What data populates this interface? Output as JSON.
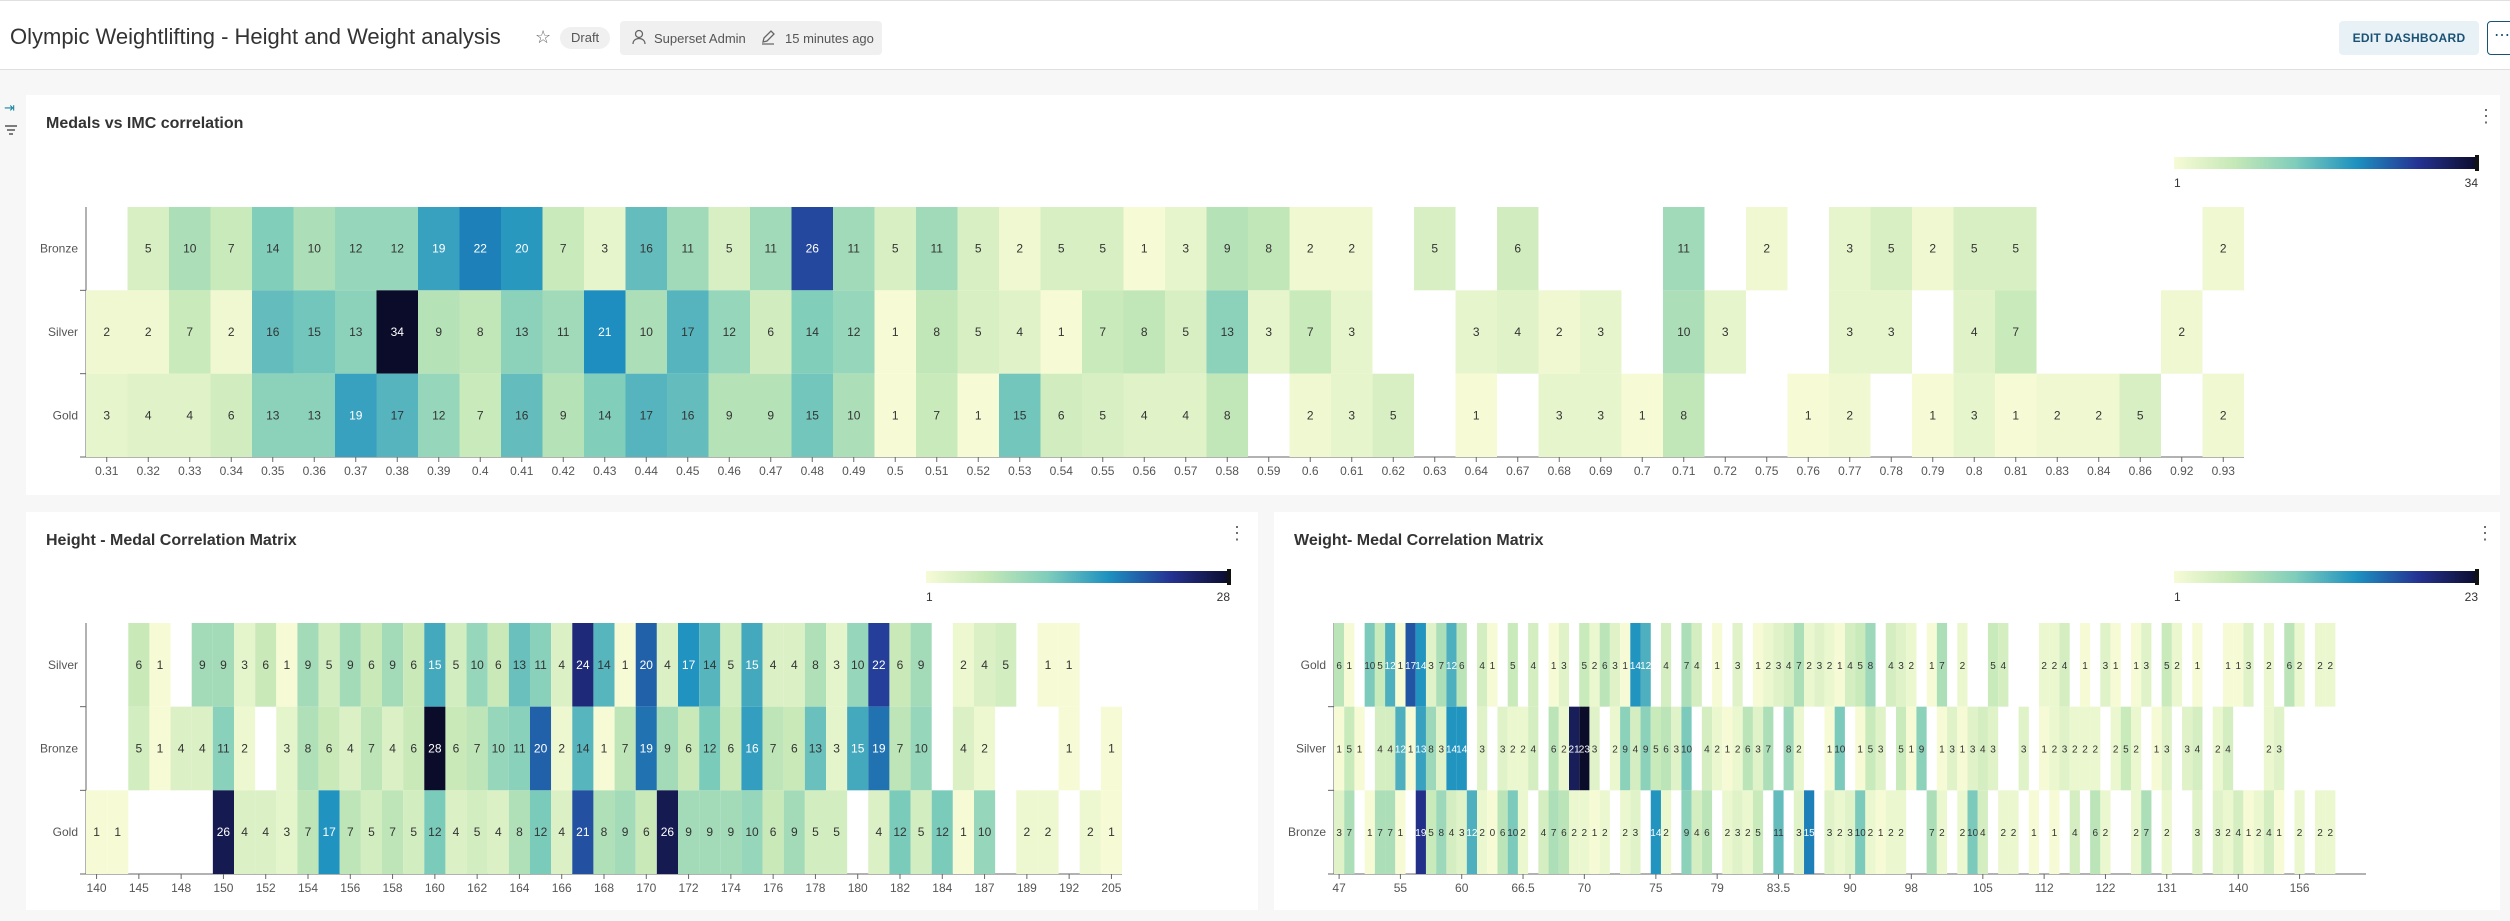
{
  "dashboard": {
    "title": "Olympic Weightlifting - Height and Weight analysis",
    "status": "Draft",
    "owner": "Superset Admin",
    "modified": "15 minutes ago",
    "edit_label": "EDIT DASHBOARD",
    "more_label": "⋯"
  },
  "colors": {
    "low": "#f6fbd6",
    "mid1": "#c5e8b7",
    "mid2": "#7fcdbb",
    "mid3": "#1d91c0",
    "mid4": "#253494",
    "high": "#0b0b2a",
    "accent": "#1a5275"
  },
  "charts": {
    "imc": {
      "title": "Medals vs IMC correlation",
      "legend_min": "1",
      "legend_max": "34",
      "max": 34,
      "rows": [
        "Bronze",
        "Silver",
        "Gold"
      ],
      "x": [
        "0.31",
        "0.32",
        "0.33",
        "0.34",
        "0.35",
        "0.36",
        "0.37",
        "0.38",
        "0.39",
        "0.4",
        "0.41",
        "0.42",
        "0.43",
        "0.44",
        "0.45",
        "0.46",
        "0.47",
        "0.48",
        "0.49",
        "0.5",
        "0.51",
        "0.52",
        "0.53",
        "0.54",
        "0.55",
        "0.56",
        "0.57",
        "0.58",
        "0.59",
        "0.6",
        "0.61",
        "0.62",
        "0.63",
        "0.64",
        "0.67",
        "0.68",
        "0.69",
        "0.7",
        "0.71",
        "0.72",
        "0.75",
        "0.76",
        "0.77",
        "0.78",
        "0.79",
        "0.8",
        "0.81",
        "0.83",
        "0.84",
        "0.86",
        "0.92",
        "0.93"
      ],
      "values": [
        [
          null,
          5,
          10,
          7,
          14,
          10,
          12,
          12,
          19,
          22,
          20,
          7,
          3,
          16,
          11,
          5,
          11,
          26,
          11,
          5,
          11,
          5,
          2,
          5,
          5,
          1,
          3,
          9,
          8,
          2,
          2,
          null,
          5,
          null,
          6,
          null,
          null,
          null,
          11,
          null,
          2,
          null,
          3,
          5,
          2,
          5,
          5,
          null,
          null,
          null,
          null,
          2
        ],
        [
          2,
          2,
          7,
          2,
          16,
          15,
          13,
          34,
          9,
          8,
          13,
          11,
          21,
          10,
          17,
          12,
          6,
          14,
          12,
          1,
          8,
          5,
          4,
          1,
          7,
          8,
          5,
          13,
          3,
          7,
          3,
          null,
          null,
          3,
          4,
          2,
          3,
          null,
          10,
          3,
          null,
          null,
          3,
          3,
          null,
          4,
          7,
          null,
          null,
          null,
          2,
          null
        ],
        [
          3,
          4,
          4,
          6,
          13,
          13,
          19,
          17,
          12,
          7,
          16,
          9,
          14,
          17,
          16,
          9,
          9,
          15,
          10,
          1,
          7,
          1,
          15,
          6,
          5,
          4,
          4,
          8,
          null,
          2,
          3,
          5,
          null,
          1,
          null,
          3,
          3,
          1,
          8,
          null,
          null,
          1,
          2,
          null,
          1,
          3,
          1,
          2,
          2,
          5,
          null,
          2
        ]
      ]
    },
    "height": {
      "title": "Height - Medal Correlation Matrix",
      "legend_min": "1",
      "legend_max": "28",
      "max": 28,
      "rows": [
        "Silver",
        "Bronze",
        "Gold"
      ],
      "x_count": 49,
      "ticks": [
        {
          "i": 0,
          "t": "140"
        },
        {
          "i": 2,
          "t": "145"
        },
        {
          "i": 4,
          "t": "148"
        },
        {
          "i": 6,
          "t": "150"
        },
        {
          "i": 8,
          "t": "152"
        },
        {
          "i": 10,
          "t": "154"
        },
        {
          "i": 12,
          "t": "156"
        },
        {
          "i": 14,
          "t": "158"
        },
        {
          "i": 16,
          "t": "160"
        },
        {
          "i": 18,
          "t": "162"
        },
        {
          "i": 20,
          "t": "164"
        },
        {
          "i": 22,
          "t": "166"
        },
        {
          "i": 24,
          "t": "168"
        },
        {
          "i": 26,
          "t": "170"
        },
        {
          "i": 28,
          "t": "172"
        },
        {
          "i": 30,
          "t": "174"
        },
        {
          "i": 32,
          "t": "176"
        },
        {
          "i": 34,
          "t": "178"
        },
        {
          "i": 36,
          "t": "180"
        },
        {
          "i": 38,
          "t": "182"
        },
        {
          "i": 40,
          "t": "184"
        },
        {
          "i": 42,
          "t": "187"
        },
        {
          "i": 44,
          "t": "189"
        },
        {
          "i": 46,
          "t": "192"
        },
        {
          "i": 48,
          "t": "205"
        }
      ],
      "values": [
        [
          null,
          null,
          6,
          1,
          null,
          9,
          9,
          3,
          6,
          1,
          9,
          5,
          9,
          6,
          9,
          6,
          15,
          5,
          10,
          6,
          13,
          11,
          4,
          24,
          14,
          1,
          20,
          4,
          17,
          14,
          5,
          15,
          4,
          4,
          8,
          3,
          10,
          22,
          6,
          9,
          null,
          2,
          4,
          5,
          null,
          1,
          1,
          null,
          null
        ],
        [
          null,
          null,
          5,
          1,
          4,
          4,
          11,
          2,
          null,
          3,
          8,
          6,
          4,
          7,
          4,
          6,
          28,
          6,
          7,
          10,
          11,
          20,
          2,
          14,
          1,
          7,
          19,
          9,
          6,
          12,
          6,
          16,
          7,
          6,
          13,
          3,
          15,
          19,
          7,
          10,
          null,
          4,
          2,
          null,
          null,
          null,
          1,
          null,
          1
        ],
        [
          1,
          1,
          null,
          null,
          null,
          null,
          26,
          4,
          4,
          3,
          7,
          17,
          7,
          5,
          7,
          5,
          12,
          4,
          5,
          4,
          8,
          12,
          4,
          21,
          8,
          9,
          6,
          26,
          9,
          9,
          9,
          10,
          6,
          9,
          5,
          5,
          null,
          4,
          12,
          5,
          12,
          1,
          10,
          null,
          2,
          2,
          null,
          2,
          1
        ]
      ]
    },
    "weight": {
      "title": "Weight- Medal Correlation Matrix",
      "legend_min": "1",
      "legend_max": "23",
      "max": 23,
      "rows": [
        "Gold",
        "Silver",
        "Bronze"
      ],
      "x_count": 101,
      "ticks": [
        {
          "i": 0,
          "t": "47"
        },
        {
          "i": 6,
          "t": "55"
        },
        {
          "i": 12,
          "t": "60"
        },
        {
          "i": 18,
          "t": "66.5"
        },
        {
          "i": 24,
          "t": "70"
        },
        {
          "i": 31,
          "t": "75"
        },
        {
          "i": 37,
          "t": "79"
        },
        {
          "i": 43,
          "t": "83.5"
        },
        {
          "i": 50,
          "t": "90"
        },
        {
          "i": 56,
          "t": "98"
        },
        {
          "i": 63,
          "t": "105"
        },
        {
          "i": 69,
          "t": "112"
        },
        {
          "i": 75,
          "t": "122"
        },
        {
          "i": 81,
          "t": "131"
        },
        {
          "i": 88,
          "t": "140"
        },
        {
          "i": 94,
          "t": "156"
        }
      ],
      "values": [
        [
          6,
          1,
          null,
          10,
          5,
          12,
          1,
          17,
          14,
          3,
          7,
          12,
          6,
          null,
          4,
          1,
          null,
          5,
          null,
          4,
          null,
          1,
          3,
          null,
          5,
          2,
          6,
          3,
          1,
          14,
          12,
          null,
          4,
          null,
          7,
          4,
          null,
          1,
          null,
          3,
          null,
          1,
          2,
          3,
          4,
          7,
          2,
          3,
          2,
          1,
          4,
          5,
          8,
          null,
          4,
          3,
          2,
          null,
          1,
          7,
          null,
          2,
          null,
          null,
          5,
          4,
          null,
          null,
          null,
          2,
          2,
          4,
          null,
          1,
          null,
          3,
          1,
          null,
          1,
          3,
          null,
          5,
          2,
          null,
          1,
          null,
          null,
          1,
          1,
          3,
          null,
          2,
          null,
          6,
          2,
          null,
          2,
          2,
          null,
          null,
          null
        ],
        [
          1,
          5,
          1,
          null,
          4,
          4,
          12,
          1,
          13,
          8,
          3,
          14,
          14,
          null,
          3,
          null,
          3,
          2,
          2,
          4,
          null,
          6,
          2,
          21,
          23,
          3,
          null,
          2,
          9,
          4,
          9,
          5,
          6,
          3,
          10,
          null,
          4,
          2,
          1,
          2,
          6,
          3,
          7,
          null,
          8,
          2,
          null,
          null,
          1,
          10,
          null,
          1,
          5,
          3,
          null,
          5,
          1,
          9,
          null,
          1,
          3,
          1,
          3,
          4,
          3,
          null,
          null,
          3,
          null,
          1,
          2,
          3,
          2,
          2,
          2,
          null,
          2,
          5,
          2,
          null,
          1,
          3,
          null,
          3,
          4,
          null,
          2,
          4,
          null,
          null,
          null,
          2,
          3,
          null,
          null,
          null,
          null,
          null,
          null,
          null,
          null
        ],
        [
          3,
          7,
          null,
          1,
          7,
          7,
          1,
          null,
          19,
          5,
          8,
          4,
          3,
          12,
          2,
          0,
          6,
          10,
          2,
          null,
          4,
          7,
          6,
          2,
          2,
          1,
          2,
          null,
          2,
          3,
          null,
          14,
          2,
          null,
          9,
          4,
          6,
          null,
          2,
          3,
          2,
          5,
          null,
          11,
          null,
          3,
          15,
          null,
          3,
          2,
          3,
          10,
          2,
          1,
          2,
          2,
          null,
          null,
          7,
          2,
          null,
          2,
          10,
          4,
          null,
          2,
          2,
          null,
          1,
          null,
          1,
          null,
          4,
          null,
          6,
          2,
          null,
          null,
          2,
          7,
          null,
          2,
          null,
          null,
          3,
          null,
          3,
          2,
          4,
          1,
          2,
          4,
          1,
          null,
          2,
          null,
          2,
          2,
          null,
          null,
          null
        ]
      ]
    }
  }
}
